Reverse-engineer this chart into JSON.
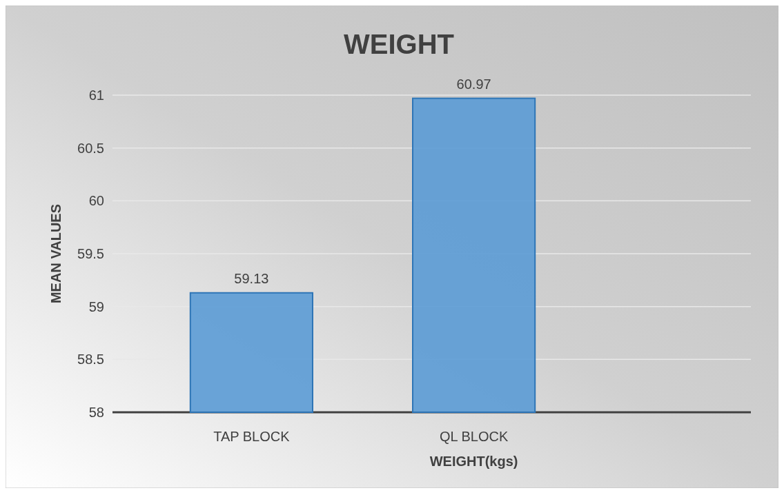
{
  "chart_data": {
    "type": "bar",
    "title": "WEIGHT",
    "xlabel": "WEIGHT(kgs)",
    "ylabel": "MEAN VALUES",
    "categories": [
      "TAP BLOCK",
      "QL BLOCK"
    ],
    "values": [
      59.13,
      60.97
    ],
    "color": "#5b9bd5",
    "ylim": [
      58,
      61
    ],
    "yticks": [
      58,
      58.5,
      59,
      59.5,
      60,
      60.5,
      61
    ],
    "grid": "y",
    "data_labels": true
  }
}
